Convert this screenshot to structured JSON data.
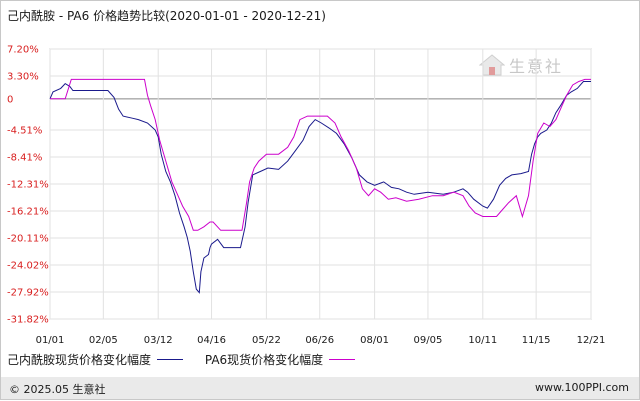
{
  "title": "己内酰胺 - PA6 价格趋势比较(2020-01-01 - 2020-12-21)",
  "footer": {
    "copyright": "© 2025.05 生意社",
    "site": "www.100PPI.com"
  },
  "watermark": {
    "text": "生意社",
    "icon": "house-logo-icon"
  },
  "colors": {
    "series_1": "#1a1a8c",
    "series_2": "#cc00cc",
    "ytick": "#d81e1e",
    "zero_line": "#888888",
    "grid": "#e2e2e2"
  },
  "chart_data": {
    "type": "line",
    "title": "己内酰胺 - PA6 价格趋势比较(2020-01-01 - 2020-12-21)",
    "xlabel": "",
    "ylabel": "",
    "ylim": [
      -31.82,
      7.2
    ],
    "ytick_values": [
      7.2,
      3.3,
      0,
      -4.51,
      -8.41,
      -12.31,
      -16.21,
      -20.11,
      -24.02,
      -27.92,
      -31.82
    ],
    "ytick_labels": [
      "7.20%",
      "3.30%",
      "0",
      "-4.51%",
      "-8.41%",
      "-12.31%",
      "-16.21%",
      "-20.11%",
      "-24.02%",
      "-27.92%",
      "-31.82%"
    ],
    "xlim": [
      "2020-01-01",
      "2020-12-21"
    ],
    "x_ticks": [
      "2020-01-01",
      "2020-02-05",
      "2020-03-12",
      "2020-04-16",
      "2020-05-22",
      "2020-06-26",
      "2020-08-01",
      "2020-09-05",
      "2020-10-11",
      "2020-11-15",
      "2020-12-21"
    ],
    "x_tick_labels": [
      "01/01",
      "02/05",
      "03/12",
      "04/16",
      "05/22",
      "06/26",
      "08/01",
      "09/05",
      "10/11",
      "11/15",
      "12/21"
    ],
    "grid": true,
    "legend": "bottom",
    "series": [
      {
        "name": "己内酰胺现货价格变化幅度",
        "points": [
          [
            "2020-01-01",
            0.0
          ],
          [
            "2020-01-03",
            1.0
          ],
          [
            "2020-01-08",
            1.5
          ],
          [
            "2020-01-11",
            2.2
          ],
          [
            "2020-01-14",
            1.8
          ],
          [
            "2020-01-16",
            1.2
          ],
          [
            "2020-01-31",
            1.2
          ],
          [
            "2020-02-08",
            1.2
          ],
          [
            "2020-02-12",
            0.2
          ],
          [
            "2020-02-15",
            -1.5
          ],
          [
            "2020-02-18",
            -2.5
          ],
          [
            "2020-02-24",
            -2.8
          ],
          [
            "2020-02-28",
            -3.0
          ],
          [
            "2020-03-05",
            -3.5
          ],
          [
            "2020-03-10",
            -4.5
          ],
          [
            "2020-03-12",
            -5.5
          ],
          [
            "2020-03-14",
            -8.0
          ],
          [
            "2020-03-17",
            -10.5
          ],
          [
            "2020-03-20",
            -12.0
          ],
          [
            "2020-03-23",
            -14.0
          ],
          [
            "2020-03-26",
            -16.5
          ],
          [
            "2020-03-29",
            -18.5
          ],
          [
            "2020-03-31",
            -20.0
          ],
          [
            "2020-04-02",
            -22.0
          ],
          [
            "2020-04-04",
            -25.0
          ],
          [
            "2020-04-06",
            -27.5
          ],
          [
            "2020-04-08",
            -28.0
          ],
          [
            "2020-04-09",
            -25.0
          ],
          [
            "2020-04-11",
            -23.0
          ],
          [
            "2020-04-14",
            -22.5
          ],
          [
            "2020-04-15",
            -21.5
          ],
          [
            "2020-04-16",
            -21.0
          ],
          [
            "2020-04-20",
            -20.3
          ],
          [
            "2020-04-24",
            -21.5
          ],
          [
            "2020-04-29",
            -21.5
          ],
          [
            "2020-05-05",
            -21.5
          ],
          [
            "2020-05-08",
            -18.5
          ],
          [
            "2020-05-10",
            -15.0
          ],
          [
            "2020-05-13",
            -11.0
          ],
          [
            "2020-05-18",
            -10.5
          ],
          [
            "2020-05-23",
            -10.0
          ],
          [
            "2020-05-30",
            -10.2
          ],
          [
            "2020-06-05",
            -9.0
          ],
          [
            "2020-06-10",
            -7.5
          ],
          [
            "2020-06-15",
            -6.0
          ],
          [
            "2020-06-19",
            -4.0
          ],
          [
            "2020-06-23",
            -3.0
          ],
          [
            "2020-06-27",
            -3.5
          ],
          [
            "2020-07-02",
            -4.2
          ],
          [
            "2020-07-07",
            -5.0
          ],
          [
            "2020-07-12",
            -6.5
          ],
          [
            "2020-07-17",
            -8.5
          ],
          [
            "2020-07-22",
            -11.0
          ],
          [
            "2020-07-27",
            -12.0
          ],
          [
            "2020-08-01",
            -12.5
          ],
          [
            "2020-08-07",
            -12.0
          ],
          [
            "2020-08-12",
            -12.8
          ],
          [
            "2020-08-17",
            -13.0
          ],
          [
            "2020-08-22",
            -13.5
          ],
          [
            "2020-08-27",
            -13.8
          ],
          [
            "2020-09-05",
            -13.5
          ],
          [
            "2020-09-15",
            -13.8
          ],
          [
            "2020-09-22",
            -13.5
          ],
          [
            "2020-09-28",
            -13.0
          ],
          [
            "2020-10-01",
            -13.5
          ],
          [
            "2020-10-05",
            -14.5
          ],
          [
            "2020-10-11",
            -15.5
          ],
          [
            "2020-10-14",
            -15.8
          ],
          [
            "2020-10-18",
            -14.5
          ],
          [
            "2020-10-22",
            -12.5
          ],
          [
            "2020-10-26",
            -11.5
          ],
          [
            "2020-10-30",
            -11.0
          ],
          [
            "2020-11-05",
            -10.8
          ],
          [
            "2020-11-10",
            -10.5
          ],
          [
            "2020-11-12",
            -8.0
          ],
          [
            "2020-11-14",
            -6.5
          ],
          [
            "2020-11-16",
            -5.5
          ],
          [
            "2020-11-18",
            -5.0
          ],
          [
            "2020-11-22",
            -4.5
          ],
          [
            "2020-11-25",
            -3.5
          ],
          [
            "2020-11-28",
            -2.0
          ],
          [
            "2020-12-01",
            -1.0
          ],
          [
            "2020-12-05",
            0.5
          ],
          [
            "2020-12-08",
            1.0
          ],
          [
            "2020-12-12",
            1.5
          ],
          [
            "2020-12-16",
            2.5
          ],
          [
            "2020-12-21",
            2.5
          ]
        ]
      },
      {
        "name": "PA6现货价格变化幅度",
        "points": [
          [
            "2020-01-01",
            0.0
          ],
          [
            "2020-01-11",
            0.0
          ],
          [
            "2020-01-15",
            2.8
          ],
          [
            "2020-01-31",
            2.8
          ],
          [
            "2020-02-15",
            2.8
          ],
          [
            "2020-02-28",
            2.8
          ],
          [
            "2020-03-03",
            2.8
          ],
          [
            "2020-03-05",
            0.5
          ],
          [
            "2020-03-07",
            -1.0
          ],
          [
            "2020-03-10",
            -3.0
          ],
          [
            "2020-03-13",
            -6.0
          ],
          [
            "2020-03-17",
            -9.0
          ],
          [
            "2020-03-21",
            -12.0
          ],
          [
            "2020-03-25",
            -14.0
          ],
          [
            "2020-03-28",
            -15.5
          ],
          [
            "2020-04-01",
            -17.0
          ],
          [
            "2020-04-04",
            -19.0
          ],
          [
            "2020-04-07",
            -19.0
          ],
          [
            "2020-04-11",
            -18.5
          ],
          [
            "2020-04-15",
            -17.8
          ],
          [
            "2020-04-17",
            -17.8
          ],
          [
            "2020-04-22",
            -19.0
          ],
          [
            "2020-05-06",
            -19.0
          ],
          [
            "2020-05-09",
            -15.0
          ],
          [
            "2020-05-11",
            -12.0
          ],
          [
            "2020-05-14",
            -10.0
          ],
          [
            "2020-05-17",
            -9.0
          ],
          [
            "2020-05-22",
            -8.0
          ],
          [
            "2020-05-30",
            -8.0
          ],
          [
            "2020-06-05",
            -7.0
          ],
          [
            "2020-06-09",
            -5.5
          ],
          [
            "2020-06-13",
            -3.0
          ],
          [
            "2020-06-18",
            -2.5
          ],
          [
            "2020-06-24",
            -2.5
          ],
          [
            "2020-07-01",
            -2.5
          ],
          [
            "2020-07-06",
            -3.5
          ],
          [
            "2020-07-10",
            -5.5
          ],
          [
            "2020-07-15",
            -7.5
          ],
          [
            "2020-07-20",
            -10.0
          ],
          [
            "2020-07-24",
            -13.0
          ],
          [
            "2020-07-28",
            -14.0
          ],
          [
            "2020-08-01",
            -13.0
          ],
          [
            "2020-08-05",
            -13.5
          ],
          [
            "2020-08-10",
            -14.5
          ],
          [
            "2020-08-15",
            -14.3
          ],
          [
            "2020-08-22",
            -14.8
          ],
          [
            "2020-08-30",
            -14.5
          ],
          [
            "2020-09-08",
            -14.0
          ],
          [
            "2020-09-15",
            -14.0
          ],
          [
            "2020-09-22",
            -13.5
          ],
          [
            "2020-09-28",
            -14.0
          ],
          [
            "2020-10-02",
            -15.5
          ],
          [
            "2020-10-06",
            -16.5
          ],
          [
            "2020-10-11",
            -17.0
          ],
          [
            "2020-10-20",
            -17.0
          ],
          [
            "2020-10-24",
            -16.0
          ],
          [
            "2020-10-28",
            -15.0
          ],
          [
            "2020-11-02",
            -14.0
          ],
          [
            "2020-11-06",
            -17.0
          ],
          [
            "2020-11-10",
            -14.0
          ],
          [
            "2020-11-13",
            -9.0
          ],
          [
            "2020-11-16",
            -5.0
          ],
          [
            "2020-11-20",
            -3.5
          ],
          [
            "2020-11-24",
            -4.0
          ],
          [
            "2020-11-28",
            -3.0
          ],
          [
            "2020-12-02",
            -1.0
          ],
          [
            "2020-12-05",
            0.5
          ],
          [
            "2020-12-09",
            2.0
          ],
          [
            "2020-12-13",
            2.5
          ],
          [
            "2020-12-17",
            2.8
          ],
          [
            "2020-12-21",
            2.8
          ]
        ]
      }
    ]
  }
}
